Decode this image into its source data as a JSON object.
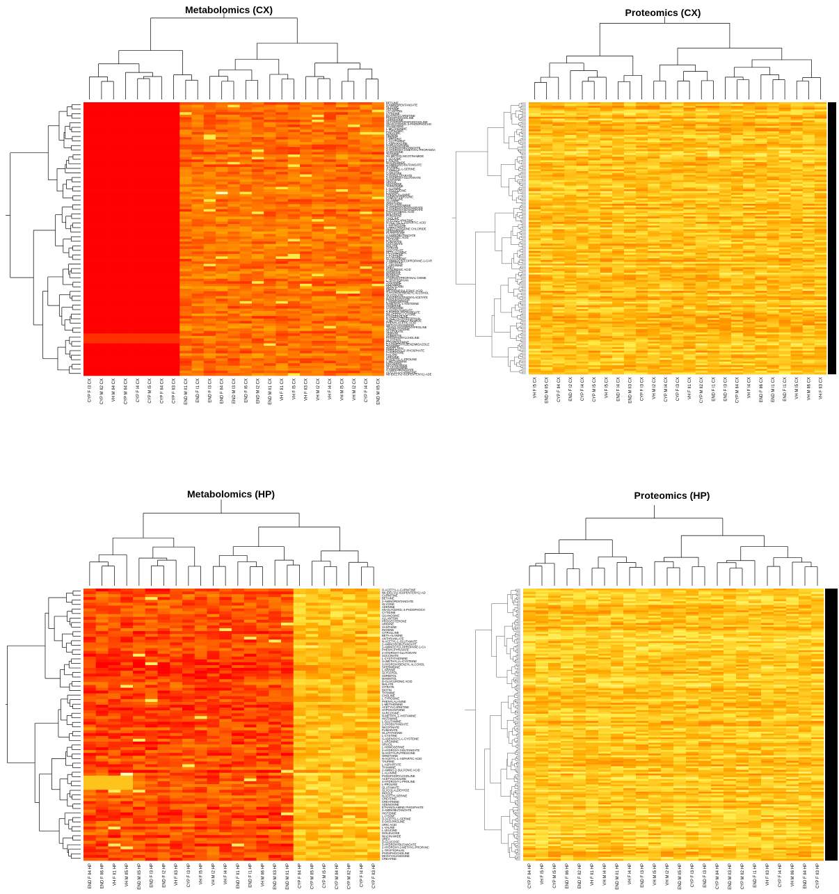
{
  "chart_data": [
    {
      "type": "heatmap",
      "title": "Metabolomics (CX)",
      "palette": [
        "#ff0000",
        "#ff6a00",
        "#ffb400",
        "#ffff66",
        "#ffffcc"
      ],
      "columns": [
        "CYP F I3 CX",
        "CYP M II2 CX",
        "VH M II4 CX",
        "CYP M II4 CX",
        "CYP F I4 CX",
        "CYP M I5 CX",
        "CYP F II4 CX",
        "CYP F II3 CX",
        "END M II1 CX",
        "END F I1 CX",
        "END F I3 CX",
        "END F II4 CX",
        "END M I3 CX",
        "END F I6 CX",
        "END M I2 CX",
        "END M II1 CX",
        "VH F II1 CX",
        "VH F I5 CX",
        "VH F II3 CX",
        "VH M I2 CX",
        "VH F I4 CX",
        "VH M I5 CX",
        "VH M I2 CX",
        "CYP F I4 CX",
        "END M II5 CX"
      ],
      "rows": [
        "BETAINE",
        "2-AMINOPENTANOATE",
        "GLYCINE",
        "ADENINE",
        "ALLANTOIN",
        "CYTIDINE",
        "BUTYRYLCARNITINE",
        "PHOSPHOCHOLINE",
        "ADENOSINE",
        "GLYCEROPHOSPHOCHOLINE",
        "SN-GLYCEROL-3-PHOSPHOCHO",
        "GUANOSINE",
        "L-METHIONINE",
        "L-TYROSINE",
        "CREATINE",
        "INOSINE",
        "URIDINE",
        "L-PROLINE",
        "L-GLUTAMINE",
        "L-ASPARAGINE",
        "HYPOXANTHINE",
        "3-HYDROXYBUTANOATE",
        "2-HYDROXY-2-METHYL-PROPANOA",
        "SARCOSINE",
        "THYMINE",
        "N1-METHYLNICOTINAMIDE",
        "L-LEUCINE",
        "L-VALINE",
        "NIACINAMIDE",
        "2-AMINOISO-BUTANOATE",
        "TAURINE",
        "O-ACETYL-L-SERINE",
        "L-SERINE",
        "CARNITINE",
        "2-OXOGLUTARATE",
        "2-HYDROXY-GLUTARATE",
        "XANTHINE",
        "URACIL",
        "HISTAMINE",
        "THREONINE",
        "L-ALANINE",
        "L-ISOLEUCINE",
        "L-LYSINE",
        "PHENYLALANINE",
        "HYDROXYPROLINE",
        "CITRULLINE",
        "GUANINE",
        "ORNITHINE",
        "D-GLUCOSAMINE",
        "3-HYDROXYISOVALERATE",
        "2-HYDROXYISOVALERATE",
        "PANTOTHENIC ACID",
        "MALONATE",
        "PYRUVATE",
        "CHOLINE",
        "ACETYLCARNITINE",
        "N-ACETYL-L-ASPARTIC ACID",
        "L-ASPARTATE",
        "L-GLUTAMATE",
        "ACETYLCHOLINE CHLORIDE",
        "SPERMIDINE",
        "PUTRESCINE",
        "4-AMINOBUTANOATE",
        "NICOTINIC ACID",
        "LACTATE",
        "FUMARATE",
        "SUCCINATE",
        "MALATE",
        "CITRATE",
        "ISOCITRATE",
        "BETA-ALANINE",
        "L-CYSTEINE",
        "L-CYSTINE",
        "GLUTATHIONE",
        "1-AMINOCYCLOPROPANE-1-CAR",
        "L-HISTIDINE",
        "L-ARGININE",
        "UREA",
        "KYNURENIC ACID",
        "SORBITOL",
        "MANNITOL",
        "INOSITOL",
        "HYDROXYPROPANAL OXIME",
        "L-TRYPTOPHAN",
        "TYRAMINE",
        "DOPAMINE",
        "SEROTONIN",
        "INDOLE",
        "METHANESULFONIC ACID",
        "3-HYDROXYBENZYL ALCOHOL",
        "GLYCOLATE",
        "4-HYDROXYPHENYLACETATE",
        "INDOLEACETATE",
        "L-HOMOSERINE",
        "N-METHYL-L-HISTIDINE",
        "ANSERINE",
        "CARNOSINE",
        "2-OXOBUTANOATE",
        "3-PHENYLPROPANOATE",
        "N6-ACETYL-L-LYSINE",
        "5-OXOPROLINE",
        "N-ACETYLTRYPTOPHAN",
        "1-METHYLNICOTINAMIDE",
        "PHENYLACETIC ACID",
        "METHYLGUANIDINE",
        "TRANS-4-HYDROXYPROLINE",
        "HOMOCYSTEINE",
        "GLUTARATE",
        "ADIPATE",
        "SUBERATE",
        "PHOSPHORYLCHOLINE",
        "GLYCEROL",
        "ETHANOLAMINE",
        "5,6-DIMETHYLBENZIMIDAZOLE",
        "THIAMINE",
        "RIBOFLAVIN",
        "PYRIDOXAL 5'-PHOSPHATE",
        "PYRIDOXINE",
        "FOLATE",
        "ADENINE",
        "N-ACETYL-L-PROLINE",
        "L-METHIONINE",
        "HISTIDINOL",
        "NICOTINAMIDE",
        "GLUCOSAMINE",
        "4-AMINOBENZOATE",
        "ACETYL-L-CARNITINE",
        "N6-(DELTA2-ISOPENTENYL)-ADE"
      ],
      "values": "derived"
    },
    {
      "type": "heatmap",
      "title": "Proteomics (CX)",
      "columns": [
        "VH F I5 CX",
        "END M II5 CX",
        "CYP F II4 CX",
        "END F I2 CX",
        "CYP F I4 CX",
        "CYP M I5 CX",
        "VH F I5 CX",
        "END F I4 CX",
        "END M II3 CX",
        "CYP F I3 CX",
        "VH M I2 CX",
        "CYP M I4 CX",
        "CYP F I3 CX",
        "VH F II1 CX",
        "CYP M II2 CX",
        "END F I1 CX",
        "END F I3 CX",
        "CYP M II4 CX",
        "VH F I4 CX",
        "END F II6 CX",
        "END M I1 CX",
        "END F I1 CX",
        "VH M I5 CX",
        "VH M II6 CX",
        "VH F II3 CX"
      ],
      "rows": [],
      "values": "derived"
    },
    {
      "type": "heatmap",
      "title": "Metabolomics (HP)",
      "columns": [
        "END F II4 HP",
        "END F II6 HP",
        "VH F II1 HP",
        "VH M II5 HP",
        "END M II5 HP",
        "END F I3 HP",
        "END F I2 HP",
        "VH F II3 HP",
        "CYP F I3 HP",
        "VH F I5 HP",
        "VH M I2 HP",
        "VH F I4 HP",
        "END F II1 HP",
        "END F I1 HP",
        "VH M II6 HP",
        "END M II3 HP",
        "END M II1 HP",
        "CYP F II4 HP",
        "CYP M II5 HP",
        "CYP M I5 HP",
        "CYP M II4 HP",
        "CYP M II2 HP",
        "CYP F I4 HP",
        "CYP F II3 HP"
      ],
      "rows": [
        "O-ACETYL-L-CARNITINE",
        "N6-(DELTA2-ISOPENTENYL)-AD",
        "CARNITINE",
        "BETAINE",
        "2-AMINOPENTANOATE",
        "GLYCINE",
        "ADENINE",
        "SN-GLYCEROL-3-PHOSPHOCH",
        "CYTIDINE",
        "GUANOSINE",
        "ALLANTOIN",
        "PROGESTERONE",
        "URIDINE",
        "XANTHINE",
        "INOSINE",
        "CITRULLINE",
        "BETA-ALANINE",
        "ANTHRANILATE",
        "N-ACETYL-L-GLUTAMATE",
        "2-AMINOISOBUTANOATE",
        "1-AMINOCYCLOPROPANE-1-CA",
        "PHENYLPYRUVATE",
        "2-HYDROXY-GLUTARATE",
        "SUCCINATE",
        "L-CYSTATHIONINE",
        "S-(METHYL)-L-CYSTEINE",
        "3-HYDROXYBENZYL ALCOHOL",
        "SPERMIDINE",
        "L-SERINE",
        "GLYCEROL",
        "SORBITOL",
        "MANNITOL",
        "D-GLUCURONIC ACID",
        "MALATE",
        "CITRATE",
        "BIOTIN",
        "THYMINE",
        "CHOLINE",
        "L-TYROSINE",
        "PHENYLALANINE",
        "L-METHIONINE",
        "ACETYLCARNITINE",
        "HYPOXANTHINE",
        "SARCOSINE",
        "N-METHYL-L-HISTAMINE",
        "HISTAMINE",
        "L-GLUTAMINE",
        "2-OXOBUTANOATE",
        "NICOTINATE",
        "FUMARATE",
        "GLUTATHIONE",
        "L-CYSTINE",
        "S-ADENOSYL-L-CYSTEINE",
        "L-ARGININE",
        "URACIL",
        "L-HOMOSERINE",
        "2-HYDROXY-3-BUTANOATE",
        "N-ACETYLPUTRESCINE",
        "ORNITHINE",
        "N-ACETYL-L-ASPARTIC ACID",
        "TAURINE",
        "L-ASPARTATE",
        "THIAMINE",
        "2-AMINO-2-SULFONIC ACID",
        "L-ALANINE",
        "PHOSPHORYLCHOLINE",
        "ACETYLCHOLINE",
        "4-HYDROXY-L-PROLINE",
        "L-PROLINE",
        "GLUTAMATE",
        "GLYCOLALDEHYDE",
        "INDOLE",
        "N-ACETYLSERINE",
        "CREATINE",
        "CREATININE",
        "ADENOSINE",
        "ETHANOLAMINE PHOSPHATE",
        "2-AMINOBUTANOATE",
        "HISTIDINE",
        "L-LYSINE",
        "O-ACETYL-L-SERINE",
        "5-OXO-PROLINE",
        "URIC ACID",
        "L-VALINE",
        "L-LEUCINE",
        "ISOLEUCINE",
        "NIACINAMIDE",
        "UREA",
        "D-GLUCOSE",
        "3-HYDROXYBUTANOATE",
        "2-HYDROXY-2-METHYL-PROPANC",
        "L-TRYPTOPHAN",
        "PHOSPHOCHOLINE",
        "DEOXYGUANOSINE",
        "CREATINE"
      ],
      "values": "derived"
    },
    {
      "type": "heatmap",
      "title": "Proteomics (HP)",
      "columns": [
        "CYP F II4 HP",
        "VH F I5 HP",
        "CYP M I5 HP",
        "END F II6 HP",
        "END F II2 HP",
        "VH F II1 HP",
        "VH M I4 HP",
        "END M II1 HP",
        "VH F I4 HP",
        "END F I3 HP",
        "VH M I5 HP",
        "VH M I2 HP",
        "END M II5 HP",
        "CYP F I3 HP",
        "END F I3 HP",
        "CYP M II4 HP",
        "END M II3 HP",
        "CYP M II2 HP",
        "END F I1 HP",
        "VH F II3 HP",
        "CYP F I4 HP",
        "VH M II6 HP",
        "END F II4 HP",
        "CYP F II3 HP"
      ],
      "rows": [],
      "values": "derived"
    }
  ]
}
